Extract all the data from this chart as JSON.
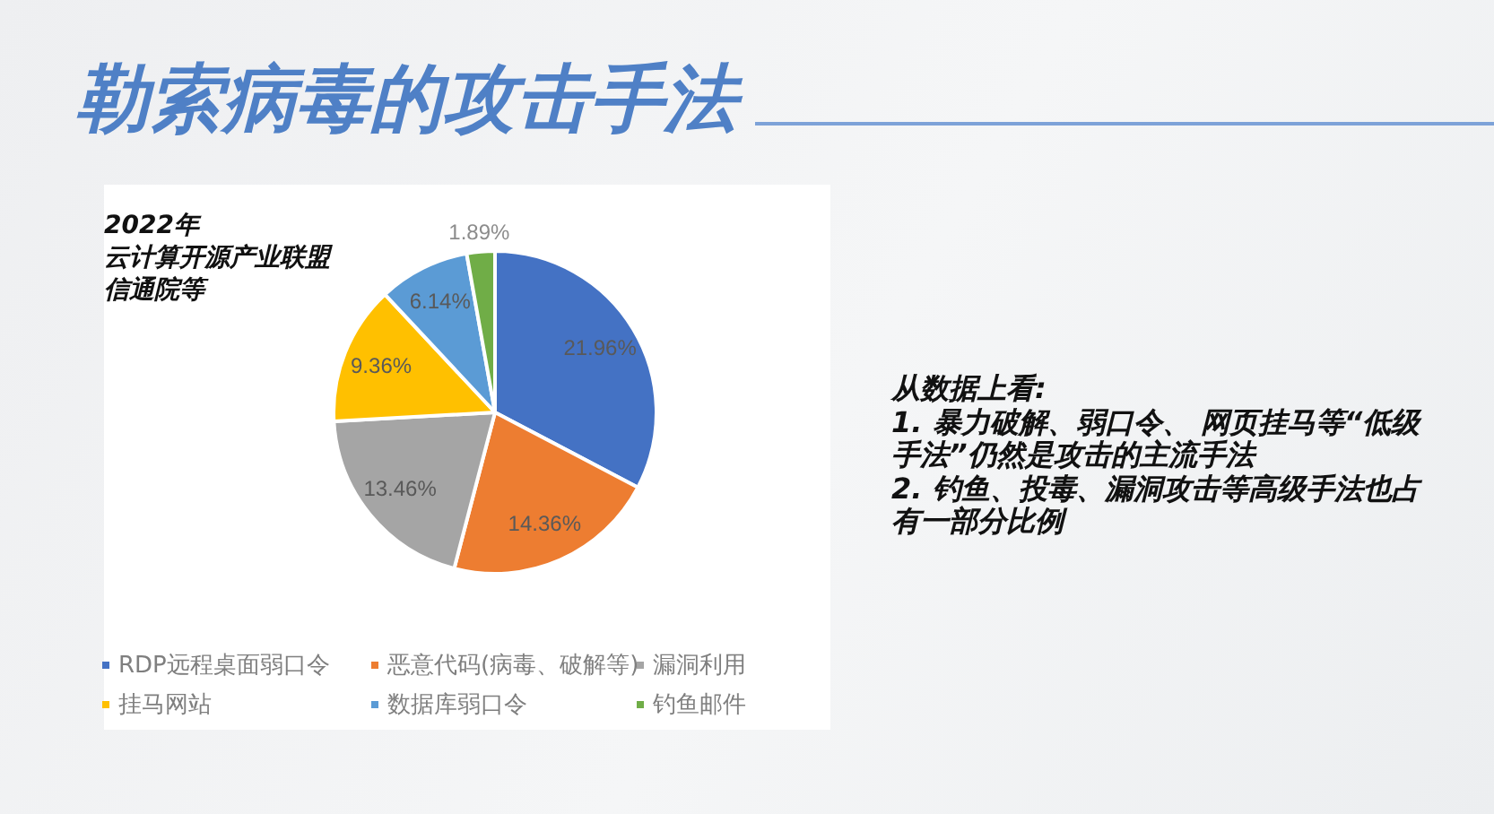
{
  "chart_data": {
    "type": "pie",
    "title": "勒索病毒的攻击手法",
    "categories": [
      "RDP远程桌面弱口令",
      "恶意代码(病毒、破解等)",
      "漏洞利用",
      "挂马网站",
      "数据库弱口令",
      "钓鱼邮件"
    ],
    "values": [
      21.96,
      14.36,
      13.46,
      9.36,
      6.14,
      1.89
    ],
    "colors": [
      "#4472c4",
      "#ed7d31",
      "#a5a5a5",
      "#ffc000",
      "#5b9bd5",
      "#70ad47"
    ],
    "value_labels": [
      "21.96%",
      "14.36%",
      "13.46%",
      "9.36%",
      "6.14%",
      "1.89%"
    ],
    "legend": "bottom",
    "annotations": [
      "2022年",
      "云计算开源产业联盟",
      "信通院等",
      "从数据上看:",
      "1. 暴力破解、弱口令、 网页挂马等“低级手法”仍然是攻击的主流手法",
      "2. 钓鱼、投毒、漏洞攻击等高级手法也占有一部分比例"
    ]
  }
}
